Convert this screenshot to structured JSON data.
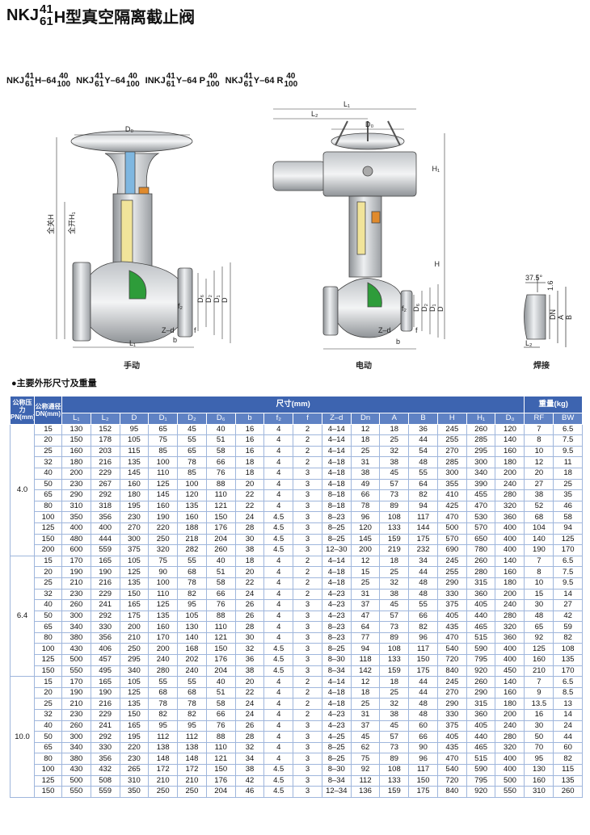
{
  "header": {
    "prefix": "NKJ",
    "sup": "41",
    "sub": "61",
    "suffix": "H型真空隔离截止阀"
  },
  "models": [
    {
      "prefix": "NKJ",
      "sup": "41",
      "sub": "61",
      "mid": "H–64",
      "top": "40",
      "bottom": "100"
    },
    {
      "prefix": "NKJ",
      "sup": "41",
      "sub": "61",
      "mid": "Y–64",
      "top": "40",
      "bottom": "100"
    },
    {
      "prefix": "INKJ",
      "sup": "41",
      "sub": "61",
      "mid": "Y–64 P",
      "top": "40",
      "bottom": "100"
    },
    {
      "prefix": "NKJ",
      "sup": "41",
      "sub": "61",
      "mid": "Y–64 R",
      "top": "40",
      "bottom": "100"
    }
  ],
  "drawings": {
    "manual": {
      "caption": "手动",
      "labels": [
        "D₀",
        "全关H",
        "全开H₁",
        "D₆",
        "D₂",
        "D₁",
        "D",
        "f₂",
        "Z–d",
        "b",
        "f",
        "L₁"
      ]
    },
    "electric": {
      "caption": "电动",
      "labels": [
        "L₁",
        "L₂",
        "D₀",
        "H₁",
        "H",
        "D₆",
        "D₂",
        "D₁",
        "D",
        "f₂",
        "Z–d",
        "b",
        "f"
      ]
    },
    "weld": {
      "caption": "焊接",
      "labels": [
        "37.5°",
        "1.6",
        "DN",
        "A",
        "B",
        "L₂"
      ]
    }
  },
  "section_title": "●主要外形尺寸及重量",
  "table": {
    "pn_header": "公称压力PN(mm)",
    "dn_header": "公称通径DN(mm)",
    "size_header": "尺寸(mm)",
    "weight_header": "重量(kg)",
    "columns": [
      "L₁",
      "L₂",
      "D",
      "D₁",
      "D₂",
      "D₆",
      "b",
      "f₂",
      "f",
      "Z–d",
      "Dn",
      "A",
      "B",
      "H",
      "H₁",
      "D₀",
      "RF",
      "BW"
    ],
    "groups": [
      {
        "pn": "4.0",
        "rows": [
          [
            15,
            130,
            152,
            95,
            65,
            45,
            40,
            16,
            4,
            2,
            "4–14",
            12,
            18,
            36,
            245,
            260,
            120,
            7,
            6.5
          ],
          [
            20,
            150,
            178,
            105,
            75,
            55,
            51,
            16,
            4,
            2,
            "4–14",
            18,
            25,
            44,
            255,
            285,
            140,
            8,
            7.5
          ],
          [
            25,
            160,
            203,
            115,
            85,
            65,
            58,
            16,
            4,
            2,
            "4–14",
            25,
            32,
            54,
            270,
            295,
            160,
            10,
            9.5
          ],
          [
            32,
            180,
            216,
            135,
            100,
            78,
            66,
            18,
            4,
            2,
            "4–18",
            31,
            38,
            48,
            285,
            300,
            180,
            12,
            11
          ],
          [
            40,
            200,
            229,
            145,
            110,
            85,
            76,
            18,
            4,
            3,
            "4–18",
            38,
            45,
            55,
            300,
            340,
            200,
            20,
            18
          ],
          [
            50,
            230,
            267,
            160,
            125,
            100,
            88,
            20,
            4,
            3,
            "4–18",
            49,
            57,
            64,
            355,
            390,
            240,
            27,
            25
          ],
          [
            65,
            290,
            292,
            180,
            145,
            120,
            110,
            22,
            4,
            3,
            "8–18",
            66,
            73,
            82,
            410,
            455,
            280,
            38,
            35
          ],
          [
            80,
            310,
            318,
            195,
            160,
            135,
            121,
            22,
            4,
            3,
            "8–18",
            78,
            89,
            94,
            425,
            470,
            320,
            52,
            46
          ],
          [
            100,
            350,
            356,
            230,
            190,
            160,
            150,
            24,
            4.5,
            3,
            "8–23",
            96,
            108,
            117,
            470,
            530,
            360,
            68,
            58
          ],
          [
            125,
            400,
            400,
            270,
            220,
            188,
            176,
            28,
            4.5,
            3,
            "8–25",
            120,
            133,
            144,
            500,
            570,
            400,
            104,
            94
          ],
          [
            150,
            480,
            444,
            300,
            250,
            218,
            204,
            30,
            4.5,
            3,
            "8–25",
            145,
            159,
            175,
            570,
            650,
            400,
            140,
            125
          ],
          [
            200,
            600,
            559,
            375,
            320,
            282,
            260,
            38,
            4.5,
            3,
            "12–30",
            200,
            219,
            232,
            690,
            780,
            400,
            190,
            170
          ]
        ]
      },
      {
        "pn": "6.4",
        "rows": [
          [
            15,
            170,
            165,
            105,
            75,
            55,
            40,
            18,
            4,
            2,
            "4–14",
            12,
            18,
            34,
            245,
            260,
            140,
            7,
            6.5
          ],
          [
            20,
            190,
            190,
            125,
            90,
            68,
            51,
            20,
            4,
            2,
            "4–18",
            15,
            25,
            44,
            255,
            280,
            160,
            8,
            7.5
          ],
          [
            25,
            210,
            216,
            135,
            100,
            78,
            58,
            22,
            4,
            2,
            "4–18",
            25,
            32,
            48,
            290,
            315,
            180,
            10,
            9.5
          ],
          [
            32,
            230,
            229,
            150,
            110,
            82,
            66,
            24,
            4,
            2,
            "4–23",
            31,
            38,
            48,
            330,
            360,
            200,
            15,
            14
          ],
          [
            40,
            260,
            241,
            165,
            125,
            95,
            76,
            26,
            4,
            3,
            "4–23",
            37,
            45,
            55,
            375,
            405,
            240,
            30,
            27
          ],
          [
            50,
            300,
            292,
            175,
            135,
            105,
            88,
            26,
            4,
            3,
            "4–23",
            47,
            57,
            66,
            405,
            440,
            280,
            48,
            42
          ],
          [
            65,
            340,
            330,
            200,
            160,
            130,
            110,
            28,
            4,
            3,
            "8–23",
            64,
            73,
            82,
            435,
            465,
            320,
            65,
            59
          ],
          [
            80,
            380,
            356,
            210,
            170,
            140,
            121,
            30,
            4,
            3,
            "8–23",
            77,
            89,
            96,
            470,
            515,
            360,
            92,
            82
          ],
          [
            100,
            430,
            406,
            250,
            200,
            168,
            150,
            32,
            4.5,
            3,
            "8–25",
            94,
            108,
            117,
            540,
            590,
            400,
            125,
            108
          ],
          [
            125,
            500,
            457,
            295,
            240,
            202,
            176,
            36,
            4.5,
            3,
            "8–30",
            118,
            133,
            150,
            720,
            795,
            400,
            160,
            135
          ],
          [
            150,
            550,
            495,
            340,
            280,
            240,
            204,
            38,
            4.5,
            3,
            "8–34",
            142,
            159,
            175,
            840,
            920,
            450,
            210,
            170
          ]
        ]
      },
      {
        "pn": "10.0",
        "rows": [
          [
            15,
            170,
            165,
            105,
            55,
            55,
            40,
            20,
            4,
            2,
            "4–14",
            12,
            18,
            44,
            245,
            260,
            140,
            7,
            6.5
          ],
          [
            20,
            190,
            190,
            125,
            68,
            68,
            51,
            22,
            4,
            2,
            "4–18",
            18,
            25,
            44,
            270,
            290,
            160,
            9,
            8.5
          ],
          [
            25,
            210,
            216,
            135,
            78,
            78,
            58,
            24,
            4,
            2,
            "4–18",
            25,
            32,
            48,
            290,
            315,
            180,
            13.5,
            13
          ],
          [
            32,
            230,
            229,
            150,
            82,
            82,
            66,
            24,
            4,
            2,
            "4–23",
            31,
            38,
            48,
            330,
            360,
            200,
            16,
            14
          ],
          [
            40,
            260,
            241,
            165,
            95,
            95,
            76,
            26,
            4,
            3,
            "4–23",
            37,
            45,
            60,
            375,
            405,
            240,
            30,
            24
          ],
          [
            50,
            300,
            292,
            195,
            112,
            112,
            88,
            28,
            4,
            3,
            "4–25",
            45,
            57,
            66,
            405,
            440,
            280,
            50,
            44
          ],
          [
            65,
            340,
            330,
            220,
            138,
            138,
            110,
            32,
            4,
            3,
            "8–25",
            62,
            73,
            90,
            435,
            465,
            320,
            70,
            60
          ],
          [
            80,
            380,
            356,
            230,
            148,
            148,
            121,
            34,
            4,
            3,
            "8–25",
            75,
            89,
            96,
            470,
            515,
            400,
            95,
            82
          ],
          [
            100,
            430,
            432,
            265,
            172,
            172,
            150,
            38,
            4.5,
            3,
            "8–30",
            92,
            108,
            117,
            540,
            590,
            400,
            130,
            115
          ],
          [
            125,
            500,
            508,
            310,
            210,
            210,
            176,
            42,
            4.5,
            3,
            "8–34",
            112,
            133,
            150,
            720,
            795,
            500,
            160,
            135
          ],
          [
            150,
            550,
            559,
            350,
            250,
            250,
            204,
            46,
            4.5,
            3,
            "12–34",
            136,
            159,
            175,
            840,
            920,
            550,
            310,
            260
          ]
        ]
      }
    ]
  }
}
